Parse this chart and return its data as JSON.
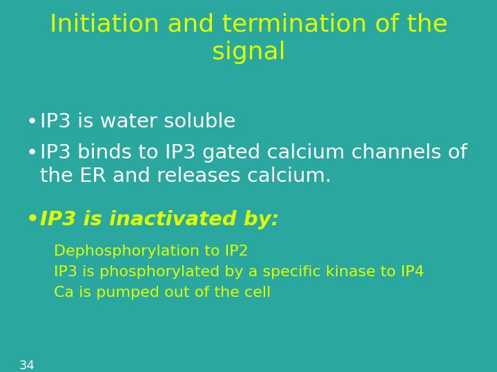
{
  "background_color": "#2aA89F",
  "title_line1": "Initiation and termination of the",
  "title_line2": "signal",
  "title_color": "#DDFF00",
  "title_fontsize": 26,
  "bullet_color": "#FFFFFF",
  "bullet_fontsize": 21,
  "bullet_fontsize_small": 19,
  "bullets": [
    "IP3 is water soluble",
    "IP3 binds to IP3 gated calcium channels of\nthe ER and releases calcium.",
    "IP3 is inactivated by:"
  ],
  "bullet3_color": "#DDFF00",
  "sub_items": [
    "Dephosphorylation to IP2",
    "IP3 is phosphorylated by a specific kinase to IP4",
    "Ca is pumped out of the cell"
  ],
  "sub_color": "#DDFF00",
  "sub_fontsize": 16,
  "page_number": "34",
  "page_color": "#FFFFFF",
  "page_fontsize": 13
}
